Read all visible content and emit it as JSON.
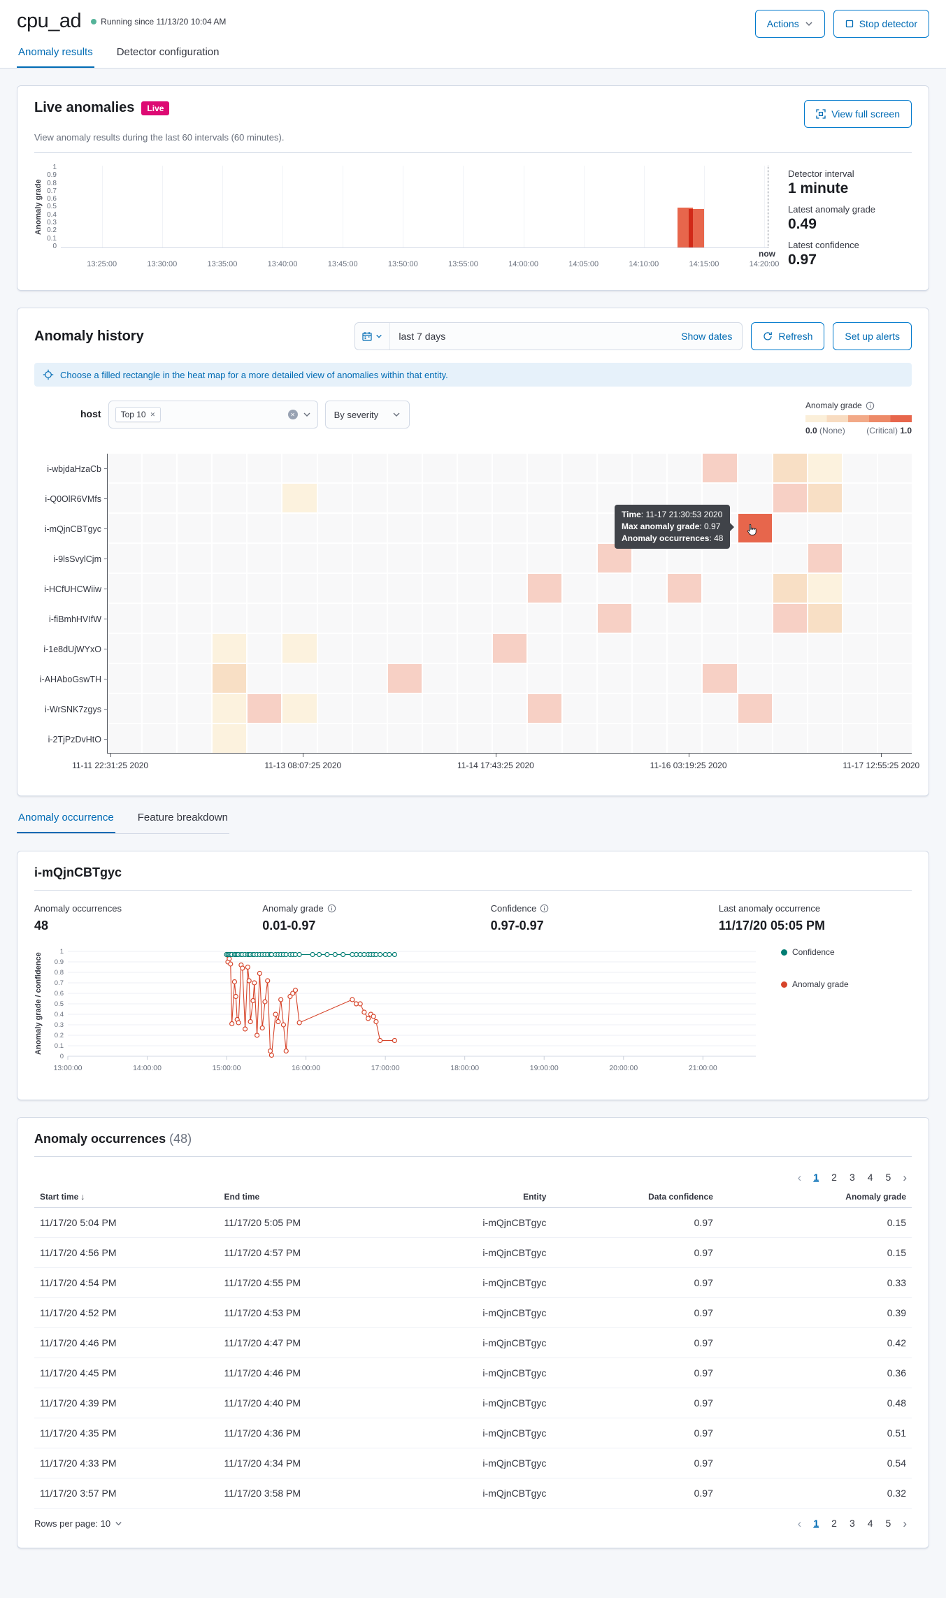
{
  "colors": {
    "accent_blue": "#006BB4",
    "live_badge": "#DD0A73",
    "bar_red": "#E7664C",
    "confidence_teal": "#017D73",
    "anomaly_red": "#D6442A",
    "status_dot": "#54B399"
  },
  "header": {
    "title": "cpu_ad",
    "status_text": "Running since 11/13/20 10:04 AM",
    "actions_label": "Actions",
    "stop_label": "Stop detector"
  },
  "tabs": [
    {
      "label": "Anomaly results",
      "active": true
    },
    {
      "label": "Detector configuration",
      "active": false
    }
  ],
  "live_panel": {
    "title": "Live anomalies",
    "badge": "Live",
    "fullscreen_label": "View full screen",
    "subtitle": "View anomaly results during the last 60 intervals (60 minutes).",
    "stats": [
      {
        "label": "Detector interval",
        "value": "1 minute"
      },
      {
        "label": "Latest anomaly grade",
        "value": "0.49"
      },
      {
        "label": "Latest confidence",
        "value": "0.97"
      }
    ],
    "chart_data": {
      "type": "bar",
      "ylabel": "Anomaly grade",
      "ylim": [
        0,
        1
      ],
      "x_ticks": [
        "13:25:00",
        "13:30:00",
        "13:35:00",
        "13:40:00",
        "13:45:00",
        "13:50:00",
        "13:55:00",
        "14:00:00",
        "14:05:00",
        "14:10:00",
        "14:15:00",
        "14:20:00"
      ],
      "now_label": "now",
      "bars": [
        {
          "frac": 0.872,
          "grade": 0.49
        },
        {
          "frac": 0.887,
          "grade": 0.47
        }
      ]
    }
  },
  "history_panel": {
    "title": "Anomaly history",
    "date_range": "last 7 days",
    "show_dates_label": "Show dates",
    "refresh_label": "Refresh",
    "alerts_label": "Set up alerts",
    "callout": "Choose a filled rectangle in the heat map for a more detailed view of anomalies within that entity.",
    "filter": {
      "label": "host",
      "selected_pill": "Top 10",
      "sort_by": "By severity"
    },
    "legend": {
      "title": "Anomaly grade",
      "min": "0.0",
      "min_suffix": "(None)",
      "max_prefix": "(Critical)",
      "max": "1.0"
    },
    "tooltip": {
      "time_label": "Time",
      "time": "11-17 21:30:53 2020",
      "grade_label": "Max anomaly grade",
      "grade": "0.97",
      "occ_label": "Anomaly occurrences",
      "occ": "48"
    },
    "chart_data": {
      "type": "heatmap",
      "rows": [
        "i-wbjdaHzaCb",
        "i-Q0OlR6VMfs",
        "i-mQjnCBTgyc",
        "i-9lsSvylCjm",
        "i-HCfUHCWiiw",
        "i-fiBmhHVIfW",
        "i-1e8dUjWYxO",
        "i-AHAboGswTH",
        "i-WrSNK7zgys",
        "i-2TjPzDvHtO"
      ],
      "cols": 23,
      "x_ticks": [
        "11-11 22:31:25 2020",
        "11-13 08:07:25 2020",
        "11-14 17:43:25 2020",
        "11-16 03:19:25 2020",
        "11-17 12:55:25 2020"
      ],
      "levels": {
        "low": "#FCF2DE",
        "mid": "#F8DFC5",
        "high": "#F7D0C5",
        "selected": "#E7664C"
      },
      "cells": [
        {
          "row": 0,
          "col": 17,
          "level": "high"
        },
        {
          "row": 0,
          "col": 19,
          "level": "mid"
        },
        {
          "row": 0,
          "col": 20,
          "level": "low"
        },
        {
          "row": 1,
          "col": 5,
          "level": "low"
        },
        {
          "row": 1,
          "col": 19,
          "level": "high"
        },
        {
          "row": 1,
          "col": 20,
          "level": "mid"
        },
        {
          "row": 2,
          "col": 18,
          "level": "selected"
        },
        {
          "row": 3,
          "col": 14,
          "level": "high"
        },
        {
          "row": 3,
          "col": 20,
          "level": "high"
        },
        {
          "row": 4,
          "col": 12,
          "level": "high"
        },
        {
          "row": 4,
          "col": 16,
          "level": "high"
        },
        {
          "row": 4,
          "col": 19,
          "level": "mid"
        },
        {
          "row": 4,
          "col": 20,
          "level": "low"
        },
        {
          "row": 5,
          "col": 14,
          "level": "high"
        },
        {
          "row": 5,
          "col": 19,
          "level": "high"
        },
        {
          "row": 5,
          "col": 20,
          "level": "mid"
        },
        {
          "row": 6,
          "col": 3,
          "level": "low"
        },
        {
          "row": 6,
          "col": 5,
          "level": "low"
        },
        {
          "row": 6,
          "col": 11,
          "level": "high"
        },
        {
          "row": 7,
          "col": 3,
          "level": "mid"
        },
        {
          "row": 7,
          "col": 8,
          "level": "high"
        },
        {
          "row": 7,
          "col": 17,
          "level": "high"
        },
        {
          "row": 8,
          "col": 3,
          "level": "low"
        },
        {
          "row": 8,
          "col": 4,
          "level": "high"
        },
        {
          "row": 8,
          "col": 5,
          "level": "low"
        },
        {
          "row": 8,
          "col": 12,
          "level": "high"
        },
        {
          "row": 8,
          "col": 18,
          "level": "high"
        },
        {
          "row": 9,
          "col": 3,
          "level": "low"
        }
      ]
    }
  },
  "detail_tabs": [
    {
      "label": "Anomaly occurrence",
      "active": true
    },
    {
      "label": "Feature breakdown",
      "active": false
    }
  ],
  "entity_panel": {
    "title": "i-mQjnCBTgyc",
    "stats": [
      {
        "label": "Anomaly occurrences",
        "value": "48",
        "info": false
      },
      {
        "label": "Anomaly grade",
        "value": "0.01-0.97",
        "info": true
      },
      {
        "label": "Confidence",
        "value": "0.97-0.97",
        "info": true
      },
      {
        "label": "Last anomaly occurrence",
        "value": "11/17/20 05:05 PM",
        "info": false
      }
    ],
    "chart_data": {
      "type": "line",
      "ylabel": "Anomaly grade / confidence",
      "ylim": [
        0,
        1
      ],
      "x_ticks": [
        "13:00:00",
        "14:00:00",
        "15:00:00",
        "16:00:00",
        "17:00:00",
        "18:00:00",
        "19:00:00",
        "20:00:00",
        "21:00:00"
      ],
      "x_domain_minutes": [
        0,
        520
      ],
      "series": [
        {
          "name": "Confidence",
          "color": "#017D73",
          "points": [
            [
              120,
              0.97
            ],
            [
              121,
              0.97
            ],
            [
              122,
              0.97
            ],
            [
              123,
              0.97
            ],
            [
              124,
              0.97
            ],
            [
              126,
              0.97
            ],
            [
              127,
              0.97
            ],
            [
              128,
              0.97
            ],
            [
              129,
              0.97
            ],
            [
              131,
              0.97
            ],
            [
              132,
              0.97
            ],
            [
              134,
              0.97
            ],
            [
              136,
              0.97
            ],
            [
              137,
              0.97
            ],
            [
              138,
              0.97
            ],
            [
              140,
              0.97
            ],
            [
              141,
              0.97
            ],
            [
              143,
              0.97
            ],
            [
              145,
              0.97
            ],
            [
              147,
              0.97
            ],
            [
              149,
              0.97
            ],
            [
              151,
              0.97
            ],
            [
              153,
              0.97
            ],
            [
              154,
              0.97
            ],
            [
              157,
              0.97
            ],
            [
              159,
              0.97
            ],
            [
              161,
              0.97
            ],
            [
              163,
              0.97
            ],
            [
              165,
              0.97
            ],
            [
              168,
              0.97
            ],
            [
              170,
              0.97
            ],
            [
              172,
              0.97
            ],
            [
              175,
              0.97
            ],
            [
              185,
              0.97
            ],
            [
              190,
              0.97
            ],
            [
              196,
              0.97
            ],
            [
              202,
              0.97
            ],
            [
              208,
              0.97
            ],
            [
              215,
              0.97
            ],
            [
              218,
              0.97
            ],
            [
              221,
              0.97
            ],
            [
              224,
              0.97
            ],
            [
              227,
              0.97
            ],
            [
              229,
              0.97
            ],
            [
              231,
              0.97
            ],
            [
              233,
              0.97
            ],
            [
              236,
              0.97
            ],
            [
              240,
              0.97
            ],
            [
              243,
              0.97
            ],
            [
              247,
              0.97
            ]
          ]
        },
        {
          "name": "Anomaly grade",
          "color": "#D6442A",
          "points": [
            [
              120,
              0.97
            ],
            [
              121,
              0.9
            ],
            [
              122,
              0.93
            ],
            [
              123,
              0.88
            ],
            [
              124,
              0.31
            ],
            [
              126,
              0.71
            ],
            [
              127,
              0.57
            ],
            [
              128,
              0.35
            ],
            [
              129,
              0.32
            ],
            [
              131,
              0.87
            ],
            [
              132,
              0.84
            ],
            [
              134,
              0.26
            ],
            [
              136,
              0.85
            ],
            [
              137,
              0.72
            ],
            [
              138,
              0.33
            ],
            [
              140,
              0.53
            ],
            [
              141,
              0.7
            ],
            [
              143,
              0.2
            ],
            [
              145,
              0.79
            ],
            [
              147,
              0.27
            ],
            [
              149,
              0.52
            ],
            [
              151,
              0.72
            ],
            [
              153,
              0.05
            ],
            [
              154,
              0.01
            ],
            [
              157,
              0.4
            ],
            [
              159,
              0.33
            ],
            [
              161,
              0.54
            ],
            [
              163,
              0.3
            ],
            [
              165,
              0.05
            ],
            [
              168,
              0.57
            ],
            [
              170,
              0.6
            ],
            [
              172,
              0.63
            ],
            [
              175,
              0.32
            ],
            [
              215,
              0.54
            ],
            [
              218,
              0.5
            ],
            [
              221,
              0.5
            ],
            [
              224,
              0.42
            ],
            [
              227,
              0.36
            ],
            [
              229,
              0.4
            ],
            [
              231,
              0.38
            ],
            [
              233,
              0.33
            ],
            [
              236,
              0.15
            ],
            [
              247,
              0.15
            ]
          ]
        }
      ]
    }
  },
  "table_panel": {
    "title": "Anomaly occurrences",
    "count": "(48)",
    "columns": [
      "Start time",
      "End time",
      "Entity",
      "Data confidence",
      "Anomaly grade"
    ],
    "rows": [
      [
        "11/17/20 5:04 PM",
        "11/17/20 5:05 PM",
        "i-mQjnCBTgyc",
        "0.97",
        "0.15"
      ],
      [
        "11/17/20 4:56 PM",
        "11/17/20 4:57 PM",
        "i-mQjnCBTgyc",
        "0.97",
        "0.15"
      ],
      [
        "11/17/20 4:54 PM",
        "11/17/20 4:55 PM",
        "i-mQjnCBTgyc",
        "0.97",
        "0.33"
      ],
      [
        "11/17/20 4:52 PM",
        "11/17/20 4:53 PM",
        "i-mQjnCBTgyc",
        "0.97",
        "0.39"
      ],
      [
        "11/17/20 4:46 PM",
        "11/17/20 4:47 PM",
        "i-mQjnCBTgyc",
        "0.97",
        "0.42"
      ],
      [
        "11/17/20 4:45 PM",
        "11/17/20 4:46 PM",
        "i-mQjnCBTgyc",
        "0.97",
        "0.36"
      ],
      [
        "11/17/20 4:39 PM",
        "11/17/20 4:40 PM",
        "i-mQjnCBTgyc",
        "0.97",
        "0.48"
      ],
      [
        "11/17/20 4:35 PM",
        "11/17/20 4:36 PM",
        "i-mQjnCBTgyc",
        "0.97",
        "0.51"
      ],
      [
        "11/17/20 4:33 PM",
        "11/17/20 4:34 PM",
        "i-mQjnCBTgyc",
        "0.97",
        "0.54"
      ],
      [
        "11/17/20 3:57 PM",
        "11/17/20 3:58 PM",
        "i-mQjnCBTgyc",
        "0.97",
        "0.32"
      ]
    ],
    "rows_per_page_label": "Rows per page: 10",
    "pages": [
      "1",
      "2",
      "3",
      "4",
      "5"
    ],
    "active_page": "1"
  }
}
